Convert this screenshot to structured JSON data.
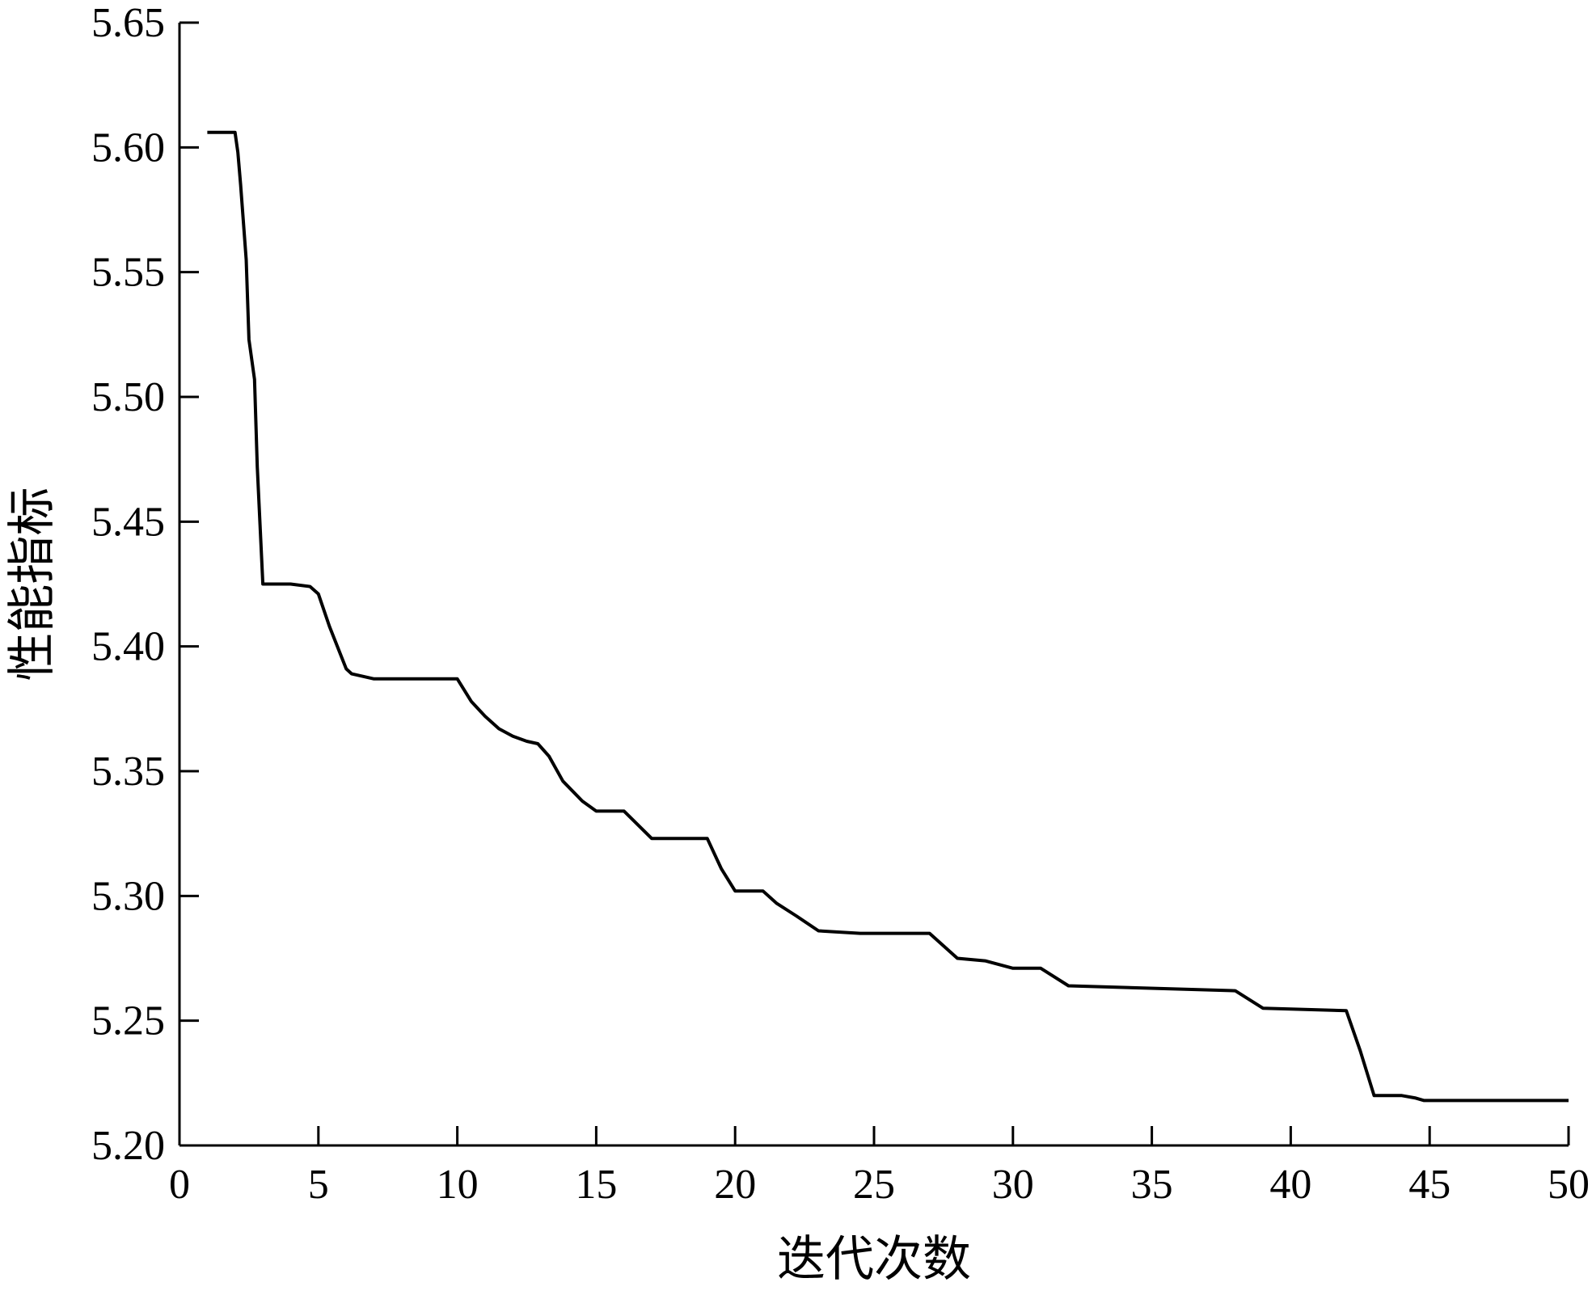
{
  "chart_data": {
    "type": "line",
    "title": "",
    "xlabel": "迭代次数",
    "ylabel": "性能指标",
    "xlim": [
      0,
      50
    ],
    "ylim": [
      5.2,
      5.65
    ],
    "xticks": [
      "0",
      "5",
      "10",
      "15",
      "20",
      "25",
      "30",
      "35",
      "40",
      "45",
      "50"
    ],
    "yticks": [
      "5.20",
      "5.25",
      "5.30",
      "5.35",
      "5.40",
      "5.45",
      "5.50",
      "5.55",
      "5.60",
      "5.65"
    ],
    "grid": false,
    "legend": "none",
    "line_color": "#000000",
    "series": [
      {
        "x": [
          1,
          2,
          2.1,
          2.2,
          2.4,
          2.5,
          2.7,
          2.8,
          3,
          4,
          4.7,
          5,
          5.4,
          6,
          6.2,
          6.6,
          7,
          10,
          10.5,
          11,
          11.5,
          12,
          12.5,
          12.9,
          13.3,
          13.8,
          14.5,
          15,
          16,
          17,
          19,
          19.5,
          20,
          21,
          21.5,
          22.2,
          23,
          24.5,
          27,
          28,
          29,
          30,
          31,
          32,
          38,
          39,
          42,
          42.5,
          43,
          44,
          44.5,
          44.8,
          50
        ],
        "y": [
          5.606,
          5.606,
          5.598,
          5.585,
          5.555,
          5.523,
          5.507,
          5.472,
          5.425,
          5.425,
          5.424,
          5.421,
          5.408,
          5.391,
          5.389,
          5.388,
          5.387,
          5.387,
          5.378,
          5.372,
          5.367,
          5.364,
          5.362,
          5.361,
          5.356,
          5.346,
          5.338,
          5.334,
          5.334,
          5.323,
          5.323,
          5.311,
          5.302,
          5.302,
          5.297,
          5.292,
          5.286,
          5.285,
          5.285,
          5.275,
          5.274,
          5.271,
          5.271,
          5.264,
          5.262,
          5.255,
          5.254,
          5.238,
          5.22,
          5.22,
          5.219,
          5.218,
          5.218
        ]
      }
    ]
  }
}
